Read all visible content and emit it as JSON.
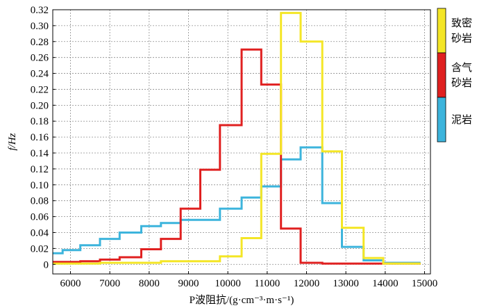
{
  "chart_data": {
    "type": "line",
    "step": true,
    "xlabel": "P波阻抗/(g·cm⁻³·m·s⁻¹)",
    "ylabel": "f/Hz",
    "xlim": [
      5550,
      15150
    ],
    "ylim": [
      -0.012,
      0.32
    ],
    "xticks": [
      6000,
      7000,
      8000,
      9000,
      10000,
      11000,
      12000,
      13000,
      14000,
      15000
    ],
    "yticks": [
      0,
      0.02,
      0.04,
      0.06,
      0.08,
      0.1,
      0.12,
      0.14,
      0.16,
      0.18,
      0.2,
      0.22,
      0.24,
      0.26,
      0.28,
      0.3,
      0.32
    ],
    "xtick_labels": [
      "6000",
      "7000",
      "8000",
      "9000",
      "10000",
      "11000",
      "12000",
      "13000",
      "14000",
      "15000"
    ],
    "ytick_labels": [
      "0",
      "0.02",
      "0.04",
      "0.06",
      "0.08",
      "0.10",
      "0.12",
      "0.14",
      "0.16",
      "0.18",
      "0.20",
      "0.22",
      "0.24",
      "0.26",
      "0.28",
      "0.30",
      "0.32"
    ],
    "grid": true,
    "legend_position": "right",
    "series": [
      {
        "name": "泥岩",
        "legend_lines": [
          "泥岩"
        ],
        "color": "#3cb4dc",
        "bins": [
          [
            5550,
            5800,
            0.014
          ],
          [
            5800,
            6250,
            0.018
          ],
          [
            6250,
            6750,
            0.024
          ],
          [
            6750,
            7250,
            0.032
          ],
          [
            7250,
            7800,
            0.04
          ],
          [
            7800,
            8300,
            0.048
          ],
          [
            8300,
            8800,
            0.052
          ],
          [
            8800,
            9800,
            0.056
          ],
          [
            9800,
            10350,
            0.07
          ],
          [
            10350,
            10850,
            0.084
          ],
          [
            10850,
            11350,
            0.098
          ],
          [
            11350,
            11850,
            0.132
          ],
          [
            11850,
            12400,
            0.147
          ],
          [
            12400,
            12900,
            0.077
          ],
          [
            12900,
            13450,
            0.022
          ],
          [
            13450,
            13950,
            0.005
          ],
          [
            13950,
            14400,
            0.002
          ],
          [
            14400,
            14900,
            0.002
          ]
        ]
      },
      {
        "name": "含气砂岩",
        "legend_lines": [
          "含气",
          "砂岩"
        ],
        "color": "#e02020",
        "bins": [
          [
            5550,
            6250,
            0.003
          ],
          [
            6250,
            6750,
            0.004
          ],
          [
            6750,
            7250,
            0.006
          ],
          [
            7250,
            7800,
            0.009
          ],
          [
            7800,
            8300,
            0.019
          ],
          [
            8300,
            8800,
            0.032
          ],
          [
            8800,
            9300,
            0.07
          ],
          [
            9300,
            9800,
            0.119
          ],
          [
            9800,
            10350,
            0.175
          ],
          [
            10350,
            10850,
            0.27
          ],
          [
            10850,
            11350,
            0.226
          ],
          [
            11350,
            11850,
            0.045
          ],
          [
            11850,
            12400,
            0.002
          ],
          [
            12400,
            14900,
            0.001
          ]
        ]
      },
      {
        "name": "致密砂岩",
        "legend_lines": [
          "致密",
          "砂岩"
        ],
        "color": "#f4e626",
        "bins": [
          [
            5550,
            6750,
            0.001
          ],
          [
            6750,
            8300,
            0.002
          ],
          [
            8300,
            9800,
            0.004
          ],
          [
            9800,
            10350,
            0.01
          ],
          [
            10350,
            10850,
            0.033
          ],
          [
            10850,
            11350,
            0.139
          ],
          [
            11350,
            11850,
            0.316
          ],
          [
            11850,
            12400,
            0.28
          ],
          [
            12400,
            12900,
            0.142
          ],
          [
            12900,
            13450,
            0.046
          ],
          [
            13450,
            13950,
            0.008
          ],
          [
            13950,
            14900,
            0.001
          ]
        ]
      }
    ]
  }
}
